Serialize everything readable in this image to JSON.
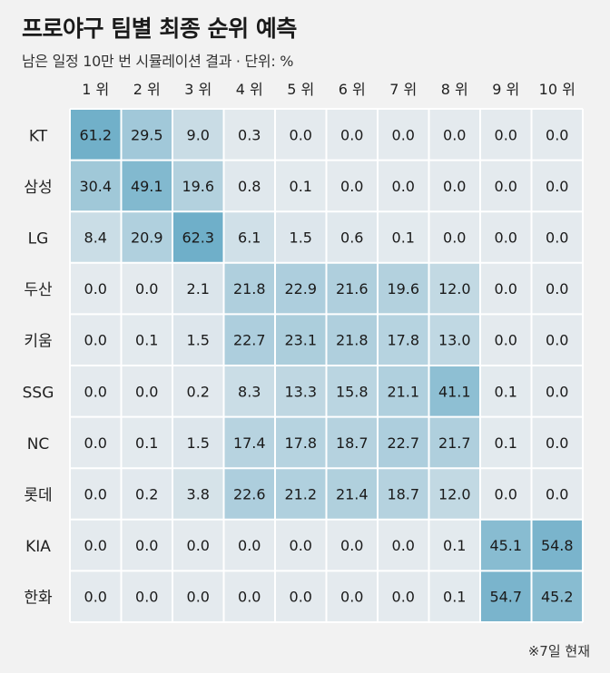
{
  "header": {
    "title": "프로야구 팀별 최종 순위 예측",
    "subtitle": "남은 일정 10만 번 시뮬레이션 결과 · 단위: %"
  },
  "footnote": "※7일 현재",
  "colors": {
    "background": "#f2f2f2",
    "grid_line": "#ffffff",
    "scale_low": "#e4eaee",
    "scale_high": "#6fafc9"
  },
  "chart_data": {
    "type": "heatmap",
    "title": "프로야구 팀별 최종 순위 예측",
    "subtitle": "남은 일정 10만 번 시뮬레이션 결과 · 단위: %",
    "columns": [
      "1 위",
      "2 위",
      "3 위",
      "4 위",
      "5 위",
      "6 위",
      "7 위",
      "8 위",
      "9 위",
      "10 위"
    ],
    "rows": [
      "KT",
      "삼성",
      "LG",
      "두산",
      "키움",
      "SSG",
      "NC",
      "롯데",
      "KIA",
      "한화"
    ],
    "values": [
      [
        61.2,
        29.5,
        9.0,
        0.3,
        0.0,
        0.0,
        0.0,
        0.0,
        0.0,
        0.0
      ],
      [
        30.4,
        49.1,
        19.6,
        0.8,
        0.1,
        0.0,
        0.0,
        0.0,
        0.0,
        0.0
      ],
      [
        8.4,
        20.9,
        62.3,
        6.1,
        1.5,
        0.6,
        0.1,
        0.0,
        0.0,
        0.0
      ],
      [
        0.0,
        0.0,
        2.1,
        21.8,
        22.9,
        21.6,
        19.6,
        12.0,
        0.0,
        0.0
      ],
      [
        0.0,
        0.1,
        1.5,
        22.7,
        23.1,
        21.8,
        17.8,
        13.0,
        0.0,
        0.0
      ],
      [
        0.0,
        0.0,
        0.2,
        8.3,
        13.3,
        15.8,
        21.1,
        41.1,
        0.1,
        0.0
      ],
      [
        0.0,
        0.1,
        1.5,
        17.4,
        17.8,
        18.7,
        22.7,
        21.7,
        0.1,
        0.0
      ],
      [
        0.0,
        0.2,
        3.8,
        22.6,
        21.2,
        21.4,
        18.7,
        12.0,
        0.0,
        0.0
      ],
      [
        0.0,
        0.0,
        0.0,
        0.0,
        0.0,
        0.0,
        0.0,
        0.1,
        45.1,
        54.8
      ],
      [
        0.0,
        0.0,
        0.0,
        0.0,
        0.0,
        0.0,
        0.0,
        0.1,
        54.7,
        45.2
      ]
    ],
    "unit": "%",
    "grid": true,
    "legend": "none"
  }
}
